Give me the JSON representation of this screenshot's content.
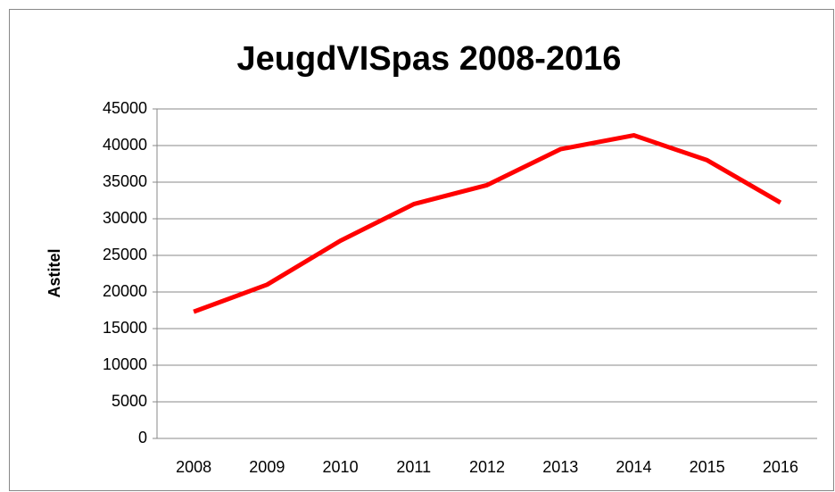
{
  "chart_data": {
    "type": "line",
    "title": "JeugdVISpas 2008-2016",
    "y_label": "Astitel",
    "categories": [
      "2008",
      "2009",
      "2010",
      "2011",
      "2012",
      "2013",
      "2014",
      "2015",
      "2016"
    ],
    "series": [
      {
        "name": "JeugdVISpas",
        "color": "#ff0000",
        "values": [
          17300,
          21000,
          27000,
          32000,
          34600,
          39500,
          41400,
          38000,
          32200
        ]
      }
    ],
    "ylim": [
      0,
      45000
    ],
    "yticks": [
      0,
      5000,
      10000,
      15000,
      20000,
      25000,
      30000,
      35000,
      40000,
      45000
    ],
    "grid": true
  }
}
